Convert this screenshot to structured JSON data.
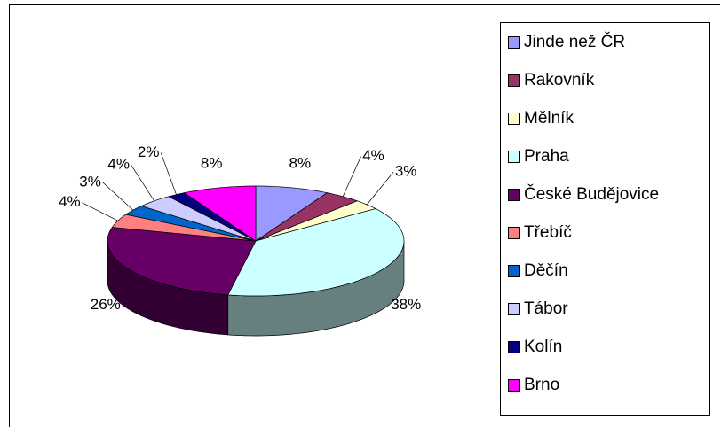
{
  "chart_data": {
    "type": "pie3d",
    "categories": [
      "Jinde než ČR",
      "Rakovník",
      "Mělník",
      "Praha",
      "České Budějovice",
      "Třebíč",
      "Děčín",
      "Tábor",
      "Kolín",
      "Brno"
    ],
    "values": [
      8,
      4,
      3,
      38,
      26,
      4,
      3,
      4,
      2,
      8
    ],
    "value_labels": [
      "8%",
      "4%",
      "3%",
      "38%",
      "26%",
      "4%",
      "3%",
      "4%",
      "2%",
      "8%"
    ],
    "colors": [
      "#9999ff",
      "#993366",
      "#ffffcc",
      "#ccffff",
      "#660066",
      "#ff8080",
      "#0066cc",
      "#ccccff",
      "#000080",
      "#ff00ff"
    ],
    "legend": "right"
  }
}
